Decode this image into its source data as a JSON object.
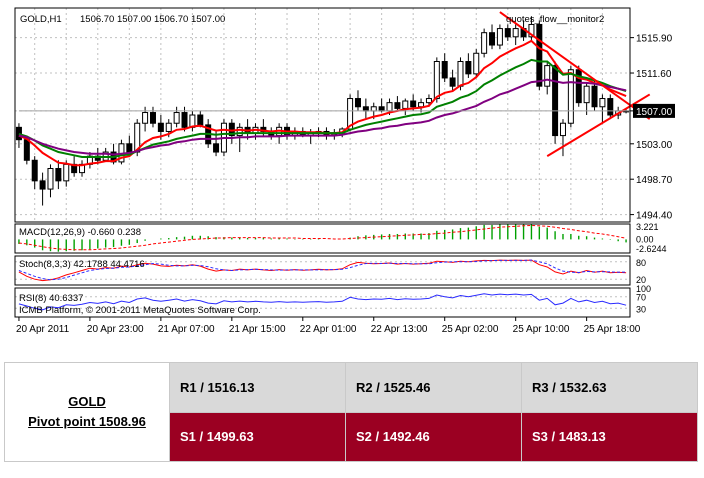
{
  "chart_data": [
    {
      "type": "candlestick",
      "title": "GOLD,H1",
      "ohlc_header": "1506.70 1507.00 1506.70 1507.00",
      "current_price": "1507.00",
      "watermark": "quotes_flow__monitor2",
      "y_ticks": [
        "1515.90",
        "1511.60",
        "1507.00",
        "1503.00",
        "1498.70",
        "1494.40"
      ],
      "y_values": [
        1515.9,
        1511.6,
        1507.0,
        1503.0,
        1498.7,
        1494.4
      ],
      "ylim": [
        1493.5,
        1519.5
      ],
      "x_ticks": [
        "20 Apr 2011",
        "20 Apr 23:00",
        "21 Apr 07:00",
        "21 Apr 15:00",
        "22 Apr 01:00",
        "22 Apr 13:00",
        "25 Apr 02:00",
        "25 Apr 10:00",
        "25 Apr 18:00"
      ],
      "candles": [
        [
          1505.0,
          1505.5,
          1502.5,
          1503.5
        ],
        [
          1503.5,
          1504.0,
          1500.5,
          1501.0
        ],
        [
          1501.0,
          1501.5,
          1497.5,
          1498.5
        ],
        [
          1498.5,
          1499.5,
          1495.5,
          1497.5
        ],
        [
          1497.5,
          1500.5,
          1496.5,
          1500.0
        ],
        [
          1500.0,
          1501.0,
          1497.5,
          1498.5
        ],
        [
          1498.5,
          1501.0,
          1497.8,
          1500.5
        ],
        [
          1500.5,
          1501.5,
          1499.0,
          1499.5
        ],
        [
          1499.5,
          1501.0,
          1499.0,
          1500.5
        ],
        [
          1500.5,
          1502.0,
          1500.0,
          1501.5
        ],
        [
          1501.5,
          1502.5,
          1500.5,
          1501.0
        ],
        [
          1501.0,
          1502.5,
          1500.8,
          1502.0
        ],
        [
          1502.0,
          1503.0,
          1500.5,
          1500.8
        ],
        [
          1500.8,
          1503.5,
          1500.5,
          1503.0
        ],
        [
          1503.0,
          1504.0,
          1501.5,
          1502.0
        ],
        [
          1502.0,
          1506.0,
          1501.5,
          1505.5
        ],
        [
          1505.5,
          1507.5,
          1504.5,
          1506.8
        ],
        [
          1506.8,
          1507.5,
          1505.0,
          1505.5
        ],
        [
          1505.5,
          1506.5,
          1503.5,
          1504.5
        ],
        [
          1504.5,
          1506.0,
          1503.8,
          1505.5
        ],
        [
          1505.5,
          1507.5,
          1505.0,
          1506.8
        ],
        [
          1506.8,
          1507.5,
          1504.5,
          1505.0
        ],
        [
          1505.0,
          1507.0,
          1504.5,
          1506.5
        ],
        [
          1506.5,
          1507.0,
          1505.0,
          1505.3
        ],
        [
          1505.3,
          1506.0,
          1502.5,
          1503.0
        ],
        [
          1503.0,
          1504.5,
          1501.5,
          1502.0
        ],
        [
          1502.0,
          1506.0,
          1501.5,
          1505.5
        ],
        [
          1505.5,
          1506.0,
          1503.0,
          1504.0
        ],
        [
          1504.0,
          1505.5,
          1502.0,
          1505.0
        ],
        [
          1505.0,
          1506.0,
          1503.5,
          1504.3
        ],
        [
          1504.3,
          1505.5,
          1503.5,
          1505.0
        ],
        [
          1505.0,
          1506.0,
          1504.0,
          1504.5
        ],
        [
          1504.5,
          1505.0,
          1503.5,
          1504.0
        ],
        [
          1504.0,
          1505.5,
          1503.0,
          1505.0
        ],
        [
          1505.0,
          1505.5,
          1503.5,
          1504.0
        ],
        [
          1504.0,
          1505.0,
          1503.5,
          1504.5
        ],
        [
          1504.5,
          1505.0,
          1503.8,
          1504.0
        ],
        [
          1504.0,
          1504.8,
          1503.0,
          1504.3
        ],
        [
          1504.3,
          1505.0,
          1503.8,
          1504.5
        ],
        [
          1504.5,
          1505.0,
          1503.5,
          1504.0
        ],
        [
          1504.0,
          1504.8,
          1503.5,
          1504.2
        ],
        [
          1504.2,
          1505.0,
          1503.8,
          1504.8
        ],
        [
          1504.8,
          1509.0,
          1504.5,
          1508.5
        ],
        [
          1508.5,
          1509.5,
          1507.0,
          1507.5
        ],
        [
          1507.5,
          1508.5,
          1506.0,
          1507.0
        ],
        [
          1507.0,
          1508.0,
          1506.0,
          1507.5
        ],
        [
          1507.5,
          1508.5,
          1506.8,
          1507.0
        ],
        [
          1507.0,
          1508.5,
          1506.5,
          1508.0
        ],
        [
          1508.0,
          1508.8,
          1507.0,
          1507.3
        ],
        [
          1507.3,
          1508.5,
          1506.5,
          1508.2
        ],
        [
          1508.2,
          1509.0,
          1507.0,
          1507.5
        ],
        [
          1507.5,
          1508.5,
          1506.8,
          1508.0
        ],
        [
          1508.0,
          1509.0,
          1507.5,
          1508.5
        ],
        [
          1508.5,
          1513.5,
          1508.0,
          1513.0
        ],
        [
          1513.0,
          1514.0,
          1510.5,
          1511.0
        ],
        [
          1511.0,
          1512.0,
          1509.5,
          1510.0
        ],
        [
          1510.0,
          1513.5,
          1509.5,
          1513.0
        ],
        [
          1513.0,
          1514.0,
          1511.0,
          1511.5
        ],
        [
          1511.5,
          1514.5,
          1511.0,
          1514.0
        ],
        [
          1514.0,
          1517.0,
          1513.5,
          1516.5
        ],
        [
          1516.5,
          1517.5,
          1514.5,
          1515.0
        ],
        [
          1515.0,
          1517.5,
          1514.5,
          1517.0
        ],
        [
          1517.0,
          1517.5,
          1515.5,
          1516.0
        ],
        [
          1516.0,
          1517.5,
          1515.0,
          1517.0
        ],
        [
          1517.0,
          1518.0,
          1515.5,
          1516.0
        ],
        [
          1516.0,
          1518.5,
          1515.5,
          1517.5
        ],
        [
          1517.5,
          1518.0,
          1509.5,
          1510.0
        ],
        [
          1510.0,
          1513.0,
          1509.0,
          1512.5
        ],
        [
          1512.5,
          1513.0,
          1503.0,
          1504.0
        ],
        [
          1504.0,
          1506.0,
          1501.5,
          1505.5
        ],
        [
          1505.5,
          1512.5,
          1505.0,
          1512.0
        ],
        [
          1512.0,
          1512.5,
          1507.5,
          1508.0
        ],
        [
          1508.0,
          1510.5,
          1506.5,
          1510.0
        ],
        [
          1510.0,
          1510.8,
          1507.0,
          1507.5
        ],
        [
          1507.5,
          1509.0,
          1505.5,
          1508.5
        ],
        [
          1508.5,
          1509.0,
          1506.0,
          1506.5
        ],
        [
          1506.5,
          1507.5,
          1506.0,
          1507.0
        ],
        [
          1507.0,
          1507.2,
          1506.7,
          1507.0
        ]
      ],
      "moving_averages": [
        {
          "color": "#ff0000",
          "values": [
            1504.0,
            1503.6,
            1502.8,
            1501.9,
            1501.3,
            1500.7,
            1500.6,
            1500.4,
            1500.4,
            1500.6,
            1500.7,
            1500.9,
            1500.9,
            1501.3,
            1501.5,
            1502.3,
            1503.2,
            1503.7,
            1503.9,
            1504.2,
            1504.7,
            1504.8,
            1505.1,
            1505.2,
            1504.9,
            1504.6,
            1504.7,
            1504.6,
            1504.7,
            1504.6,
            1504.7,
            1504.6,
            1504.5,
            1504.6,
            1504.5,
            1504.5,
            1504.4,
            1504.4,
            1504.4,
            1504.3,
            1504.3,
            1504.4,
            1505.2,
            1505.7,
            1506.0,
            1506.3,
            1506.5,
            1506.8,
            1507.0,
            1507.2,
            1507.3,
            1507.4,
            1507.6,
            1508.7,
            1509.2,
            1509.4,
            1510.1,
            1510.4,
            1511.1,
            1512.2,
            1512.8,
            1513.6,
            1514.1,
            1514.6,
            1515.0,
            1515.5,
            1514.6,
            1514.2,
            1512.8,
            1511.5,
            1511.6,
            1511.0,
            1510.8,
            1510.4,
            1510.1,
            1509.6,
            1509.2,
            1508.8
          ]
        },
        {
          "color": "#008000",
          "values": [
            1504.2,
            1503.9,
            1503.4,
            1502.8,
            1502.4,
            1502.0,
            1501.8,
            1501.6,
            1501.4,
            1501.4,
            1501.4,
            1501.4,
            1501.4,
            1501.6,
            1501.7,
            1502.1,
            1502.5,
            1502.9,
            1503.1,
            1503.3,
            1503.6,
            1503.8,
            1504.0,
            1504.2,
            1504.2,
            1504.1,
            1504.2,
            1504.2,
            1504.3,
            1504.3,
            1504.3,
            1504.3,
            1504.3,
            1504.3,
            1504.3,
            1504.3,
            1504.3,
            1504.3,
            1504.3,
            1504.3,
            1504.3,
            1504.3,
            1504.7,
            1505.0,
            1505.3,
            1505.5,
            1505.7,
            1505.9,
            1506.1,
            1506.3,
            1506.5,
            1506.6,
            1506.8,
            1507.5,
            1507.8,
            1508.1,
            1508.6,
            1508.9,
            1509.4,
            1510.2,
            1510.7,
            1511.3,
            1511.8,
            1512.3,
            1512.7,
            1513.2,
            1513.0,
            1513.0,
            1512.2,
            1511.4,
            1511.5,
            1511.2,
            1511.0,
            1510.7,
            1510.4,
            1510.0,
            1509.7,
            1509.4
          ]
        },
        {
          "color": "#800080",
          "values": [
            1504.0,
            1503.8,
            1503.4,
            1503.0,
            1502.7,
            1502.4,
            1502.2,
            1502.0,
            1501.9,
            1501.8,
            1501.8,
            1501.8,
            1501.7,
            1501.8,
            1501.9,
            1502.1,
            1502.4,
            1502.6,
            1502.8,
            1502.9,
            1503.2,
            1503.3,
            1503.5,
            1503.6,
            1503.6,
            1503.6,
            1503.7,
            1503.7,
            1503.8,
            1503.8,
            1503.9,
            1503.9,
            1503.9,
            1503.9,
            1504.0,
            1504.0,
            1504.0,
            1504.0,
            1504.0,
            1504.0,
            1504.0,
            1504.1,
            1504.3,
            1504.5,
            1504.6,
            1504.8,
            1504.9,
            1505.1,
            1505.2,
            1505.4,
            1505.5,
            1505.6,
            1505.8,
            1506.2,
            1506.5,
            1506.7,
            1507.0,
            1507.3,
            1507.6,
            1508.1,
            1508.5,
            1509.0,
            1509.3,
            1509.7,
            1510.1,
            1510.5,
            1510.6,
            1510.8,
            1510.6,
            1510.4,
            1510.5,
            1510.4,
            1510.4,
            1510.3,
            1510.1,
            1509.9,
            1509.7,
            1509.5
          ]
        }
      ],
      "trendlines": [
        {
          "from": [
            61,
            1519.0
          ],
          "to": [
            80,
            1506.0
          ]
        },
        {
          "from": [
            67,
            1501.5
          ],
          "to": [
            80,
            1509.0
          ]
        },
        {
          "from": [
            0,
            1507.0
          ],
          "to": [
            80,
            1507.0
          ]
        }
      ]
    },
    {
      "type": "bar",
      "label": "MACD(12,26,9) -0.660 0.238",
      "y_ticks": [
        "3.221",
        "0.00",
        "-2.6244"
      ],
      "ylim": [
        -3.0,
        3.4
      ],
      "values": [
        -1.0,
        -1.3,
        -1.8,
        -2.4,
        -2.6,
        -2.7,
        -2.6,
        -2.5,
        -2.4,
        -2.2,
        -2.0,
        -1.8,
        -1.7,
        -1.4,
        -1.2,
        -0.8,
        -0.3,
        0.0,
        0.2,
        0.3,
        0.5,
        0.6,
        0.8,
        0.8,
        0.7,
        0.5,
        0.5,
        0.4,
        0.4,
        0.3,
        0.3,
        0.3,
        0.2,
        0.2,
        0.2,
        0.1,
        0.1,
        0.1,
        0.1,
        0.0,
        0.0,
        0.0,
        0.4,
        0.7,
        0.9,
        1.0,
        1.1,
        1.2,
        1.2,
        1.3,
        1.3,
        1.3,
        1.4,
        1.9,
        2.1,
        2.2,
        2.5,
        2.6,
        2.9,
        3.2,
        3.2,
        3.3,
        3.3,
        3.3,
        3.3,
        3.3,
        2.8,
        2.6,
        1.8,
        1.2,
        1.2,
        0.8,
        0.7,
        0.4,
        0.2,
        -0.1,
        -0.4,
        -0.66
      ],
      "signal": [
        -0.8,
        -1.0,
        -1.3,
        -1.6,
        -1.9,
        -2.1,
        -2.2,
        -2.3,
        -2.3,
        -2.3,
        -2.2,
        -2.1,
        -2.0,
        -1.9,
        -1.7,
        -1.5,
        -1.3,
        -1.0,
        -0.8,
        -0.6,
        -0.4,
        -0.2,
        0.0,
        0.1,
        0.2,
        0.3,
        0.3,
        0.4,
        0.4,
        0.4,
        0.4,
        0.4,
        0.3,
        0.3,
        0.3,
        0.3,
        0.2,
        0.2,
        0.2,
        0.2,
        0.1,
        0.1,
        0.2,
        0.3,
        0.4,
        0.5,
        0.6,
        0.7,
        0.8,
        0.9,
        1.0,
        1.1,
        1.1,
        1.3,
        1.4,
        1.6,
        1.7,
        1.9,
        2.1,
        2.3,
        2.5,
        2.7,
        2.8,
        2.9,
        3.0,
        3.1,
        3.0,
        2.9,
        2.7,
        2.4,
        2.2,
        1.9,
        1.7,
        1.4,
        1.2,
        0.9,
        0.6,
        0.238
      ]
    },
    {
      "type": "line",
      "label": "Stoch(8,3,3) 42.1788 44.4716",
      "y_ticks": [
        "80",
        "20"
      ],
      "ylim": [
        0,
        100
      ],
      "main": [
        45,
        30,
        20,
        15,
        18,
        25,
        35,
        42,
        50,
        58,
        55,
        60,
        58,
        65,
        62,
        70,
        75,
        72,
        66,
        64,
        68,
        66,
        70,
        65,
        55,
        48,
        52,
        50,
        55,
        52,
        55,
        52,
        50,
        53,
        51,
        53,
        51,
        52,
        54,
        52,
        53,
        56,
        70,
        78,
        75,
        73,
        74,
        76,
        72,
        74,
        72,
        73,
        75,
        82,
        80,
        78,
        82,
        80,
        83,
        85,
        84,
        86,
        85,
        86,
        85,
        86,
        70,
        62,
        45,
        38,
        48,
        42,
        50,
        44,
        48,
        42,
        44,
        42.2
      ],
      "signal": [
        50,
        40,
        30,
        22,
        18,
        20,
        26,
        34,
        42,
        50,
        54,
        57,
        58,
        61,
        62,
        66,
        70,
        74,
        72,
        68,
        66,
        66,
        68,
        67,
        63,
        56,
        52,
        50,
        52,
        53,
        54,
        53,
        52,
        51,
        52,
        52,
        52,
        52,
        52,
        53,
        53,
        54,
        60,
        68,
        74,
        75,
        74,
        75,
        74,
        74,
        73,
        73,
        73,
        77,
        79,
        80,
        80,
        80,
        81,
        83,
        84,
        85,
        85,
        85,
        85,
        86,
        80,
        73,
        59,
        48,
        44,
        43,
        47,
        45,
        46,
        45,
        44,
        44.5
      ]
    },
    {
      "type": "line",
      "label": "RSI(8) 40.6337",
      "y_ticks": [
        "100",
        "70",
        "30"
      ],
      "ylim": [
        0,
        100
      ],
      "values": [
        45,
        38,
        30,
        25,
        35,
        32,
        42,
        40,
        44,
        50,
        47,
        52,
        46,
        55,
        50,
        62,
        66,
        58,
        54,
        58,
        62,
        55,
        60,
        56,
        48,
        45,
        56,
        52,
        55,
        52,
        54,
        52,
        51,
        53,
        51,
        52,
        51,
        52,
        53,
        51,
        52,
        54,
        68,
        62,
        60,
        62,
        61,
        64,
        60,
        63,
        61,
        62,
        64,
        76,
        70,
        66,
        74,
        70,
        75,
        80,
        76,
        79,
        77,
        79,
        76,
        78,
        58,
        64,
        42,
        48,
        64,
        52,
        58,
        50,
        54,
        46,
        48,
        40.6
      ]
    }
  ],
  "footer": {
    "copyright": "ICMB Platform, © 2001-2011 MetaQuotes Software Corp."
  },
  "pivot_table": {
    "symbol": "GOLD",
    "pivot_label": "Pivot point 1508.96",
    "r1": "R1 / 1516.13",
    "r2": "R2 / 1525.46",
    "r3": "R3 / 1532.63",
    "s1": "S1 / 1499.63",
    "s2": "S2 / 1492.46",
    "s3": "S3 / 1483.13"
  },
  "colors": {
    "up_candle": "#ffffff",
    "down_candle": "#000000",
    "grid": "#c0c0c0",
    "trendline": "#ff0000",
    "resistance_row": "#d9d9d9",
    "support_row": "#9b0022"
  }
}
